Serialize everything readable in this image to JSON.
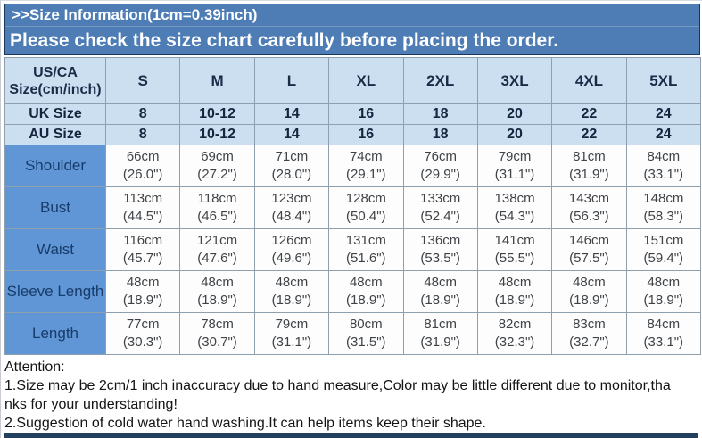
{
  "banner": {
    "title": ">>Size Information(1cm=0.39inch)",
    "subtitle": "Please check the size chart carefully before placing the order."
  },
  "size_chart": {
    "corner_lines": [
      "US/CA",
      "Size(cm/inch)"
    ],
    "sizes": [
      "S",
      "M",
      "L",
      "XL",
      "2XL",
      "3XL",
      "4XL",
      "5XL"
    ],
    "size_system_rows": [
      {
        "label": "UK Size",
        "values": [
          "8",
          "10-12",
          "14",
          "16",
          "18",
          "20",
          "22",
          "24"
        ]
      },
      {
        "label": "AU Size",
        "values": [
          "8",
          "10-12",
          "14",
          "16",
          "18",
          "20",
          "22",
          "24"
        ]
      }
    ],
    "measurement_rows": [
      {
        "label": "Shoulder",
        "values": [
          [
            "66cm",
            "(26.0\")"
          ],
          [
            "69cm",
            "(27.2\")"
          ],
          [
            "71cm",
            "(28.0\")"
          ],
          [
            "74cm",
            "(29.1\")"
          ],
          [
            "76cm",
            "(29.9\")"
          ],
          [
            "79cm",
            "(31.1\")"
          ],
          [
            "81cm",
            "(31.9\")"
          ],
          [
            "84cm",
            "(33.1\")"
          ]
        ]
      },
      {
        "label": "Bust",
        "values": [
          [
            "113cm",
            "(44.5\")"
          ],
          [
            "118cm",
            "(46.5\")"
          ],
          [
            "123cm",
            "(48.4\")"
          ],
          [
            "128cm",
            "(50.4\")"
          ],
          [
            "133cm",
            "(52.4\")"
          ],
          [
            "138cm",
            "(54.3\")"
          ],
          [
            "143cm",
            "(56.3\")"
          ],
          [
            "148cm",
            "(58.3\")"
          ]
        ]
      },
      {
        "label": "Waist",
        "values": [
          [
            "116cm",
            "(45.7\")"
          ],
          [
            "121cm",
            "(47.6\")"
          ],
          [
            "126cm",
            "(49.6\")"
          ],
          [
            "131cm",
            "(51.6\")"
          ],
          [
            "136cm",
            "(53.5\")"
          ],
          [
            "141cm",
            "(55.5\")"
          ],
          [
            "146cm",
            "(57.5\")"
          ],
          [
            "151cm",
            "(59.4\")"
          ]
        ]
      },
      {
        "label": "Sleeve Length",
        "values": [
          [
            "48cm",
            "(18.9\")"
          ],
          [
            "48cm",
            "(18.9\")"
          ],
          [
            "48cm",
            "(18.9\")"
          ],
          [
            "48cm",
            "(18.9\")"
          ],
          [
            "48cm",
            "(18.9\")"
          ],
          [
            "48cm",
            "(18.9\")"
          ],
          [
            "48cm",
            "(18.9\")"
          ],
          [
            "48cm",
            "(18.9\")"
          ]
        ]
      },
      {
        "label": "Length",
        "values": [
          [
            "77cm",
            "(30.3\")"
          ],
          [
            "78cm",
            "(30.7\")"
          ],
          [
            "79cm",
            "(31.1\")"
          ],
          [
            "80cm",
            "(31.5\")"
          ],
          [
            "81cm",
            "(31.9\")"
          ],
          [
            "82cm",
            "(32.3\")"
          ],
          [
            "83cm",
            "(32.7\")"
          ],
          [
            "84cm",
            "(33.1\")"
          ]
        ]
      }
    ]
  },
  "attention": {
    "title": "Attention:",
    "lines": [
      "1.Size may be 2cm/1 inch inaccuracy due to hand measure,Color may be little different due to monitor,tha",
      "nks for your understanding!",
      "2.Suggestion of cold water hand washing.It can help items keep their shape."
    ]
  },
  "colors": {
    "banner_blue": "#4e7db6",
    "header_light_blue": "#cbdff1",
    "row_label_blue": "#6096d5",
    "bottom_bar_navy": "#23405f"
  }
}
